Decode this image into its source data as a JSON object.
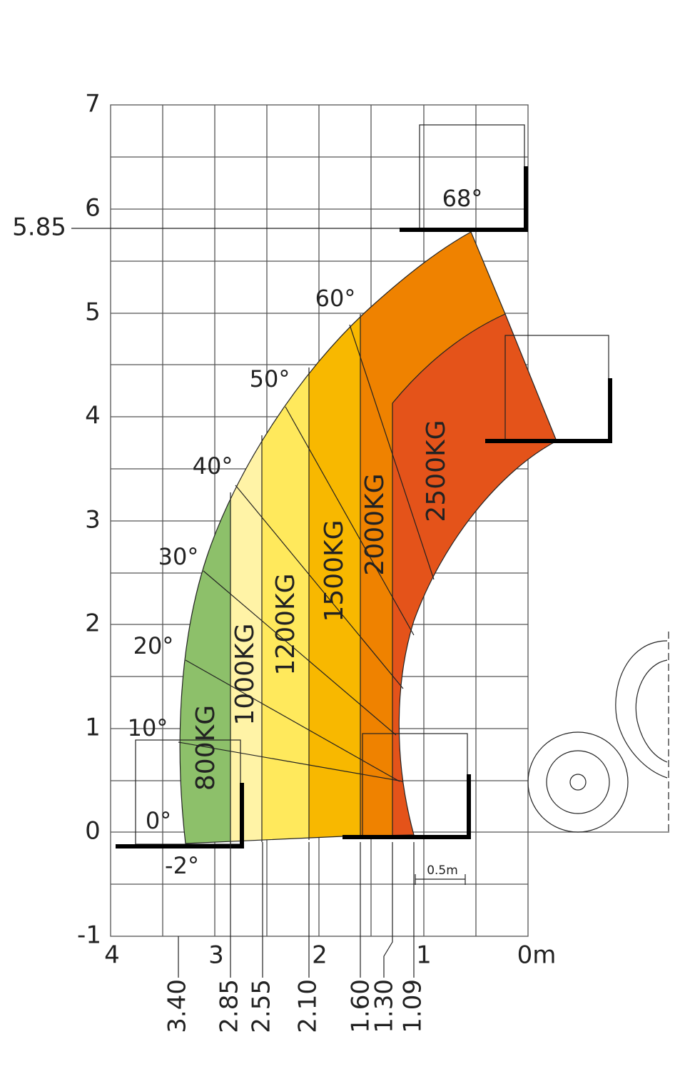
{
  "y_axis": {
    "ticks": [
      "7",
      "6",
      "5",
      "4",
      "3",
      "2",
      "1",
      "0",
      "-1"
    ],
    "marker": "5.85"
  },
  "x_axis": {
    "ticks": [
      "4",
      "3",
      "2",
      "1",
      "0m"
    ],
    "reach_marks": [
      "3.40",
      "2.85",
      "2.55",
      "2.10",
      "1.60",
      "1.30",
      "1.09"
    ]
  },
  "angles": [
    "68°",
    "60°",
    "50°",
    "40°",
    "30°",
    "20°",
    "10°",
    "0°",
    "-2°"
  ],
  "load_zones": [
    "800KG",
    "1000KG",
    "1200KG",
    "1500KG",
    "2000KG",
    "2500KG"
  ],
  "scale": "0.5m"
}
